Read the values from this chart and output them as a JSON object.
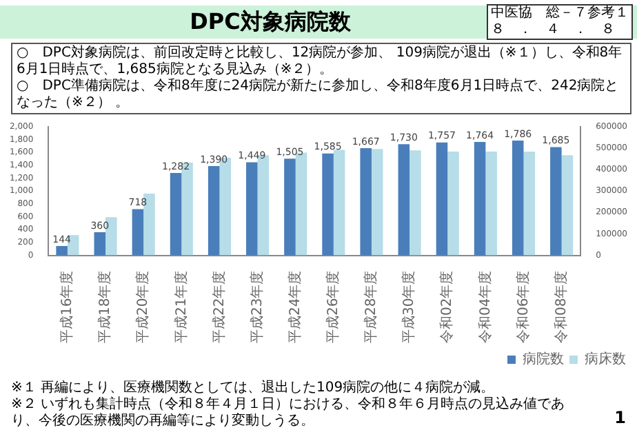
{
  "chart_data": {
    "type": "bar",
    "title": "DPC対象病院数",
    "categories": [
      "平成16年度",
      "平成18年度",
      "平成20年度",
      "平成21年度",
      "平成22年度",
      "平成23年度",
      "平成24年度",
      "平成26年度",
      "平成28年度",
      "平成30年度",
      "令和02年度",
      "令和04年度",
      "令和06年度",
      "令和08年度"
    ],
    "series": [
      {
        "name": "病院数",
        "color": "#4a7ebb",
        "values": [
          144,
          360,
          718,
          1282,
          1390,
          1449,
          1505,
          1585,
          1667,
          1730,
          1757,
          1764,
          1786,
          1685
        ],
        "value_labels": [
          "144",
          "360",
          "718",
          "1,282",
          "1,390",
          "1,449",
          "1,505",
          "1,585",
          "1,667",
          "1,730",
          "1,757",
          "1,764",
          "1,786",
          "1,685"
        ]
      },
      {
        "name": "病床数",
        "color": "#b6dde8",
        "axis": "y2",
        "values": [
          94000,
          178000,
          288000,
          433000,
          456000,
          467000,
          479000,
          492000,
          496000,
          490000,
          484000,
          484000,
          484000,
          467000
        ]
      }
    ],
    "ylim": [
      0,
      2000
    ],
    "yticks": [
      0,
      200,
      400,
      600,
      800,
      {
        "value": 1000,
        "label": "1,000"
      },
      {
        "value": 1200,
        "label": "1,200"
      },
      {
        "value": 1400,
        "label": "1,400"
      },
      {
        "value": 1600,
        "label": "1,600"
      },
      {
        "value": 1800,
        "label": "1,800"
      },
      {
        "value": 2000,
        "label": "2,000"
      }
    ],
    "y2lim": [
      0,
      600000
    ],
    "y2ticks": [
      0,
      100000,
      200000,
      300000,
      400000,
      500000,
      600000
    ],
    "grid": false,
    "legend": "bottom right",
    "annotations": [
      "中医協　総－７参考１",
      "８　．　４　．　８",
      "○　DPC対象病院は、前回改定時と比較し、12病院が参加、 109病院が退出（※１）し、令和8年6月1日時点で、1,685病院となる見込み（※２）。",
      "○　DPC準備病院は、令和8年度に24病院が新たに参加し、令和8年度6月1日時点で、242病院となった（※２） 。",
      "※１ 再編により、医療機関数としては、退出した109病院の他に４病院が減。",
      "※２ いずれも集計時点（令和８年４月１日）における、令和８年６月時点の見込み値であり、今後の医療機関の再編等により変動しうる。",
      "1"
    ]
  }
}
